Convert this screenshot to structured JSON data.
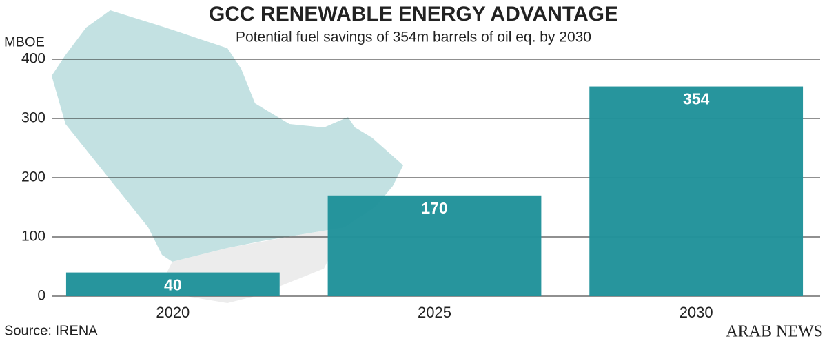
{
  "chart_data": {
    "type": "bar",
    "title": "GCC RENEWABLE ENERGY ADVANTAGE",
    "subtitle": "Potential fuel savings of 354m barrels of oil eq. by 2030",
    "y_label": "MBOE",
    "source": "Source: IRENA",
    "brand": "ARAB NEWS",
    "categories": [
      "2020",
      "2025",
      "2030"
    ],
    "values": [
      40,
      170,
      354
    ],
    "color": "#20929a",
    "ylim": [
      0,
      400
    ],
    "yticks": [
      0,
      100,
      200,
      300,
      400
    ],
    "grid": true
  }
}
